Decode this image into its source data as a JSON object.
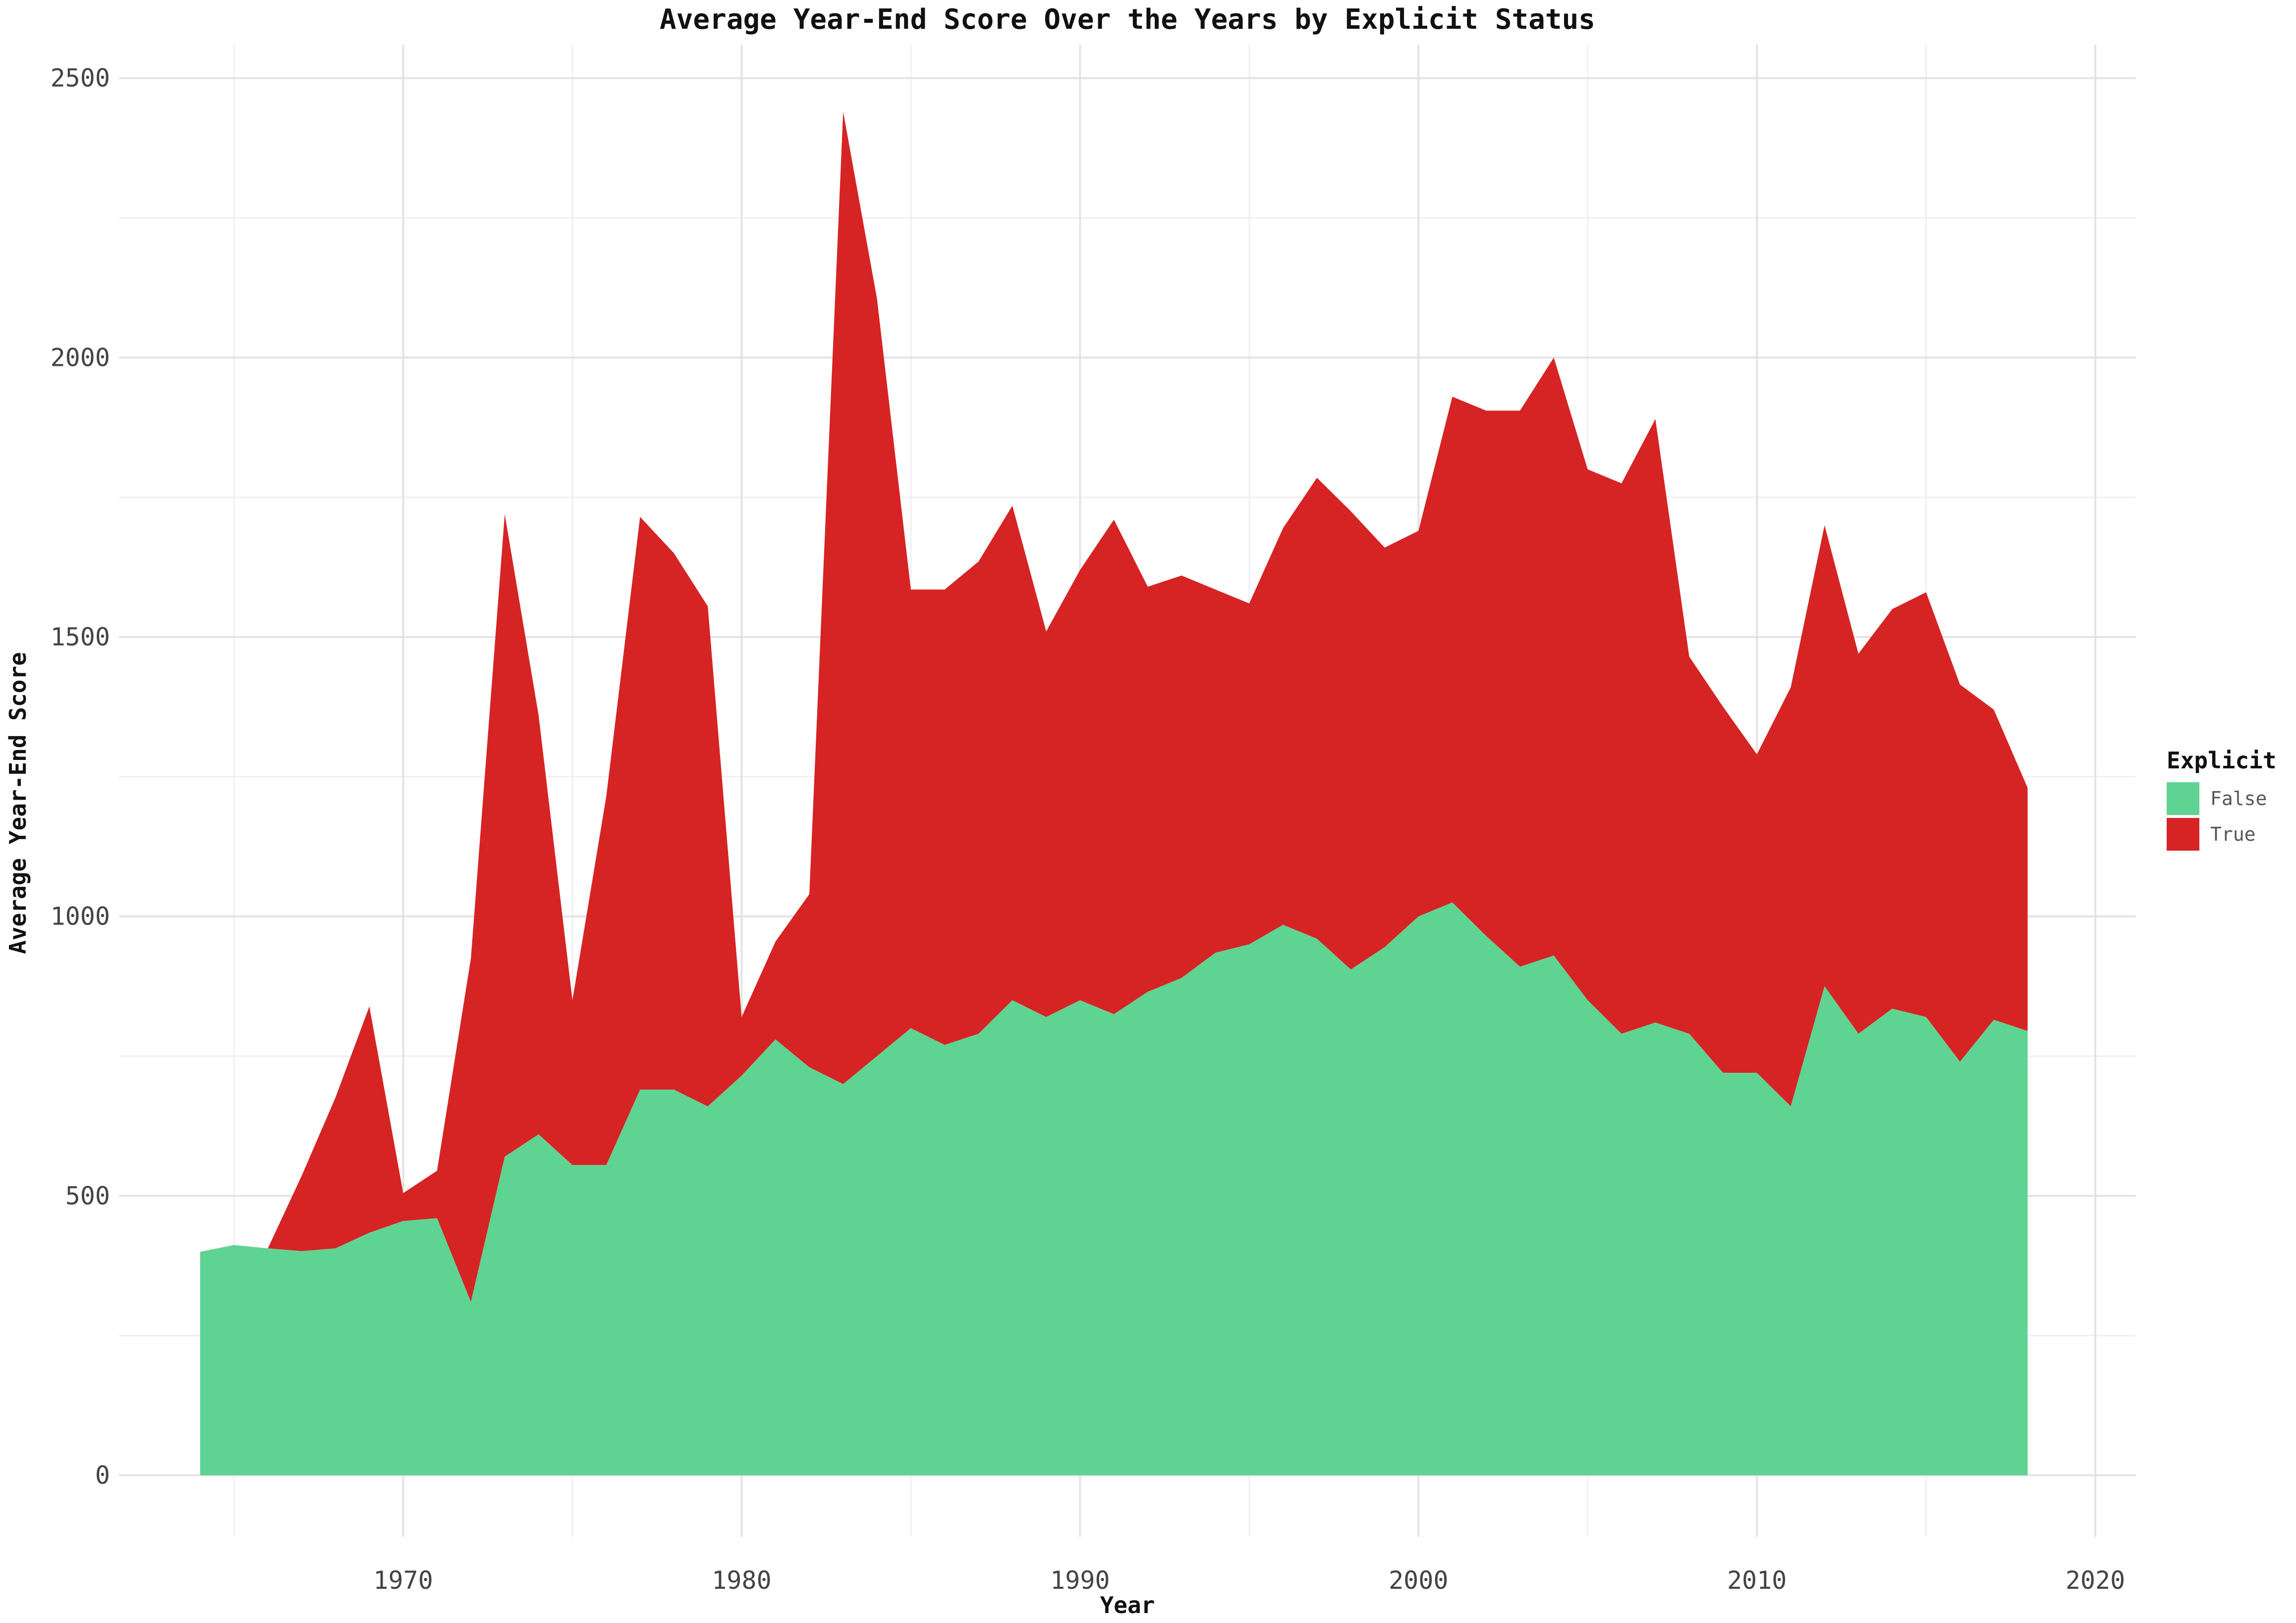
{
  "chart_data": {
    "type": "area",
    "stacked": true,
    "title": "Average Year-End Score Over the Years by Explicit Status",
    "xlabel": "Year",
    "ylabel": "Average Year-End Score",
    "xlim": [
      1961.6,
      2021.2
    ],
    "ylim": [
      -110,
      2560
    ],
    "x_ticks_major": [
      1970,
      1980,
      1990,
      2000,
      2010,
      2020
    ],
    "x_ticks_minor": [
      1965,
      1975,
      1985,
      1995,
      2005,
      2015
    ],
    "y_ticks_major": [
      0,
      500,
      1000,
      1500,
      2000,
      2500
    ],
    "y_ticks_minor": [
      250,
      750,
      1250,
      1750,
      2250
    ],
    "grid": true,
    "legend_title": "Explicit",
    "legend_position": "right",
    "x": [
      1964,
      1965,
      1966,
      1967,
      1968,
      1969,
      1970,
      1971,
      1972,
      1973,
      1974,
      1975,
      1976,
      1977,
      1978,
      1979,
      1980,
      1981,
      1982,
      1983,
      1984,
      1985,
      1986,
      1987,
      1988,
      1989,
      1990,
      1991,
      1992,
      1993,
      1994,
      1995,
      1996,
      1997,
      1998,
      1999,
      2000,
      2001,
      2002,
      2003,
      2004,
      2005,
      2006,
      2007,
      2008,
      2009,
      2010,
      2011,
      2012,
      2013,
      2014,
      2015,
      2016,
      2017,
      2018
    ],
    "series": [
      {
        "name": "False",
        "color": "#5fd392",
        "values": [
          400,
          412,
          406,
          401,
          406,
          434,
          455,
          460,
          310,
          570,
          610,
          555,
          555,
          690,
          690,
          660,
          715,
          780,
          730,
          700,
          750,
          800,
          770,
          790,
          850,
          820,
          850,
          825,
          865,
          890,
          935,
          950,
          985,
          960,
          905,
          945,
          1000,
          1025,
          965,
          910,
          930,
          850,
          790,
          810,
          790,
          720,
          720,
          660,
          875,
          790,
          835,
          820,
          740,
          815,
          795
        ]
      },
      {
        "name": "True",
        "color": "#d62424",
        "values": [
          0,
          0,
          0,
          135,
          270,
          405,
          50,
          85,
          615,
          1150,
          750,
          295,
          660,
          1025,
          960,
          895,
          105,
          175,
          310,
          1740,
          1355,
          785,
          815,
          845,
          885,
          690,
          770,
          885,
          725,
          720,
          650,
          610,
          710,
          825,
          820,
          715,
          690,
          905,
          940,
          995,
          1070,
          950,
          985,
          1080,
          675,
          655,
          570,
          750,
          825,
          680,
          715,
          760,
          675,
          555,
          435
        ]
      }
    ]
  }
}
